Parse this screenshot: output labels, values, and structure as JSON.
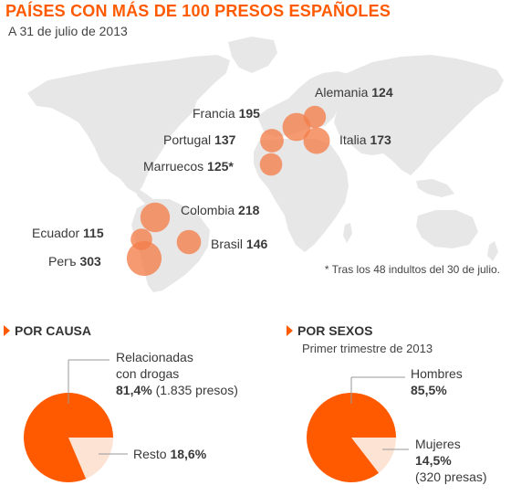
{
  "header": {
    "title": "PAÍSES CON MÁS DE 100 PRESOS ESPAÑOLES",
    "subtitle": "A 31 de julio de 2013"
  },
  "colors": {
    "accent": "#ff5a00",
    "bubble": "#f47d4a",
    "land": "#e7e7e7",
    "pie_minor": "#fde3d4"
  },
  "chart_data": [
    {
      "type": "scatter",
      "subtype": "bubble-map",
      "note": "* Tras los 48 indultos del 30 de julio.",
      "points": [
        {
          "country": "Alemania",
          "value": "124",
          "value_num": 124
        },
        {
          "country": "Francia",
          "value": "195",
          "value_num": 195
        },
        {
          "country": "Italia",
          "value": "173",
          "value_num": 173
        },
        {
          "country": "Portugal",
          "value": "137",
          "value_num": 137
        },
        {
          "country": "Marruecos",
          "value": "125*",
          "value_num": 125
        },
        {
          "country": "Colombia",
          "value": "218",
          "value_num": 218
        },
        {
          "country": "Ecuador",
          "value": "115",
          "value_num": 115
        },
        {
          "country": "Brasil",
          "value": "146",
          "value_num": 146
        },
        {
          "country": "Perъ",
          "value": "303",
          "value_num": 303
        }
      ]
    },
    {
      "type": "pie",
      "title": "POR CAUSA",
      "slices": [
        {
          "line1": "Relacionadas",
          "line2": "con drogas",
          "pct": "81,4%",
          "detail": "(1.835 presos)",
          "value": 81.4
        },
        {
          "label": "Resto",
          "pct": "18,6%",
          "value": 18.6
        }
      ]
    },
    {
      "type": "pie",
      "title": "POR SEXOS",
      "subtitle": "Primer trimestre de 2013",
      "slices": [
        {
          "label": "Hombres",
          "pct": "85,5%",
          "value": 85.5
        },
        {
          "label": "Mujeres",
          "pct": "14,5%",
          "detail": "(320 presas)",
          "value": 14.5
        }
      ]
    }
  ]
}
